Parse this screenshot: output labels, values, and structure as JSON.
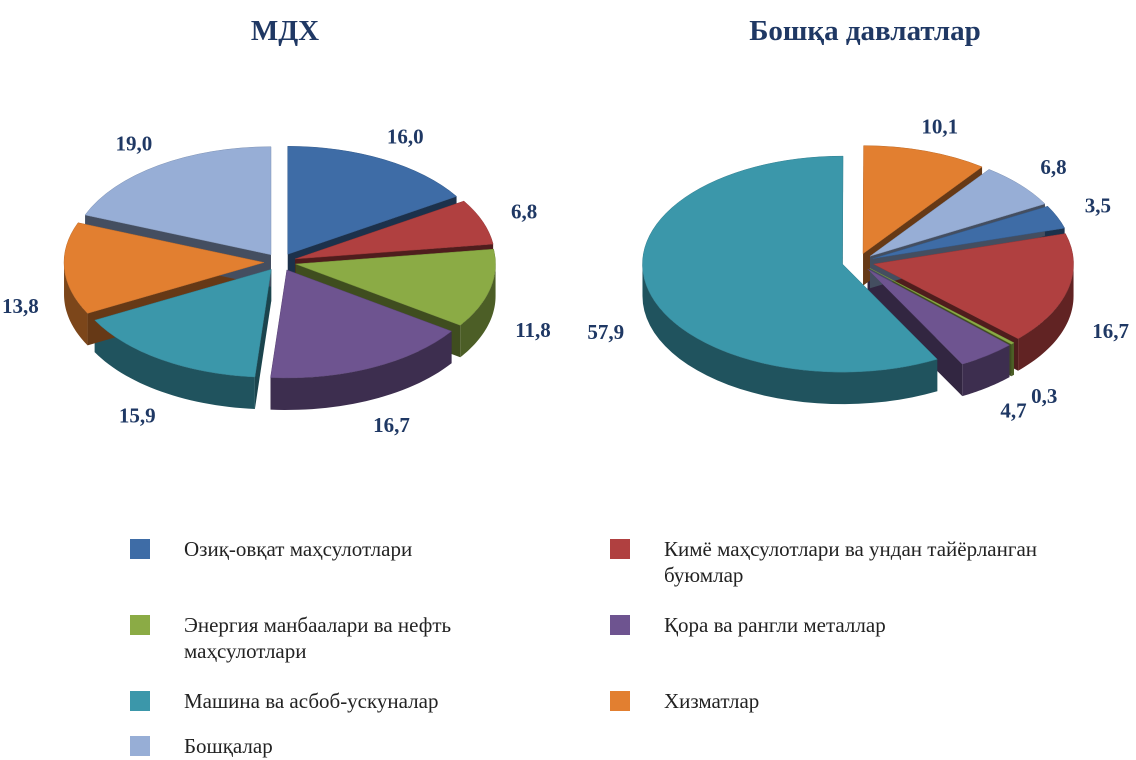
{
  "chart_data": [
    {
      "type": "pie",
      "title": "МДХ",
      "values": [
        16.0,
        6.8,
        11.8,
        16.7,
        15.9,
        13.8,
        19.0
      ],
      "value_labels": [
        "16,0",
        "6,8",
        "11,8",
        "16,7",
        "15,9",
        "13,8",
        "19,0"
      ]
    },
    {
      "type": "pie",
      "title": "Бошқа давлатлар",
      "values": [
        3.5,
        16.7,
        0.3,
        4.7,
        57.9,
        10.1,
        6.8
      ],
      "value_labels": [
        "3,5",
        "16,7",
        "0,3",
        "4,7",
        "57,9",
        "10,1",
        "6,8"
      ]
    }
  ],
  "legend": {
    "categories": [
      "Озиқ-овқат маҳсулотлари",
      "Кимё маҳсулотлари ва ундан тайёрланган буюмлар",
      "Энергия манбаалари ва нефть маҳсулотлари",
      "Қора ва рангли металлар",
      "Машина ва асбоб-ускуналар",
      "Хизматлар",
      "Бошқалар"
    ],
    "colors": [
      "#3e6ca6",
      "#b04040",
      "#8bab45",
      "#6e5490",
      "#3b97aa",
      "#e27f30",
      "#97aed6"
    ]
  }
}
